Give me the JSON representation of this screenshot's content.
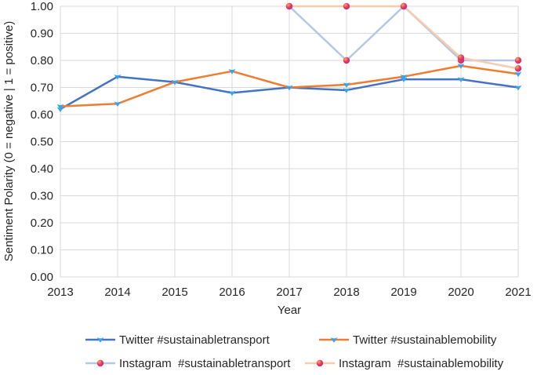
{
  "chart_data": {
    "type": "line",
    "title": "",
    "xlabel": "Year",
    "ylabel": "Sentiment Polarity (0 = negative | 1 = positive)",
    "categories": [
      2013,
      2014,
      2015,
      2016,
      2017,
      2018,
      2019,
      2020,
      2021
    ],
    "ylim": [
      0.0,
      1.0
    ],
    "ytick_step": 0.1,
    "yticks": [
      "0.00",
      "0.10",
      "0.20",
      "0.30",
      "0.40",
      "0.50",
      "0.60",
      "0.70",
      "0.80",
      "0.90",
      "1.00"
    ],
    "grid": "on",
    "legend_position": "bottom",
    "colors": {
      "gridline": "#D9D9D9",
      "twitter_marker": "#35A3EB",
      "instagram_marker_outer": "#C13584",
      "instagram_marker_mid": "#E1306C",
      "instagram_marker_inner": "#FBAD50"
    },
    "series": [
      {
        "name": "Twitter #sustainabletransport",
        "color": "#4472C4",
        "marker": "twitter-bird",
        "marker_color": "#35A3EB",
        "values": [
          0.62,
          0.74,
          0.72,
          0.68,
          0.7,
          0.69,
          0.73,
          0.73,
          0.7
        ]
      },
      {
        "name": "Twitter #sustainablemobility",
        "color": "#ED7D31",
        "marker": "twitter-bird",
        "marker_color": "#35A3EB",
        "values": [
          0.63,
          0.64,
          0.72,
          0.76,
          0.7,
          0.71,
          0.74,
          0.78,
          0.75
        ]
      },
      {
        "name": "Instagram  #sustainabletransport",
        "color": "#B4C7E7",
        "marker": "instagram-dot",
        "marker_color": "#E1306C",
        "values": [
          null,
          null,
          null,
          null,
          1.0,
          0.8,
          1.0,
          0.8,
          0.8
        ]
      },
      {
        "name": "Instagram  #sustainablemobility",
        "color": "#F8CBAD",
        "marker": "instagram-dot",
        "marker_color": "#E1306C",
        "values": [
          null,
          null,
          null,
          null,
          1.0,
          1.0,
          1.0,
          0.81,
          0.77
        ]
      }
    ]
  }
}
